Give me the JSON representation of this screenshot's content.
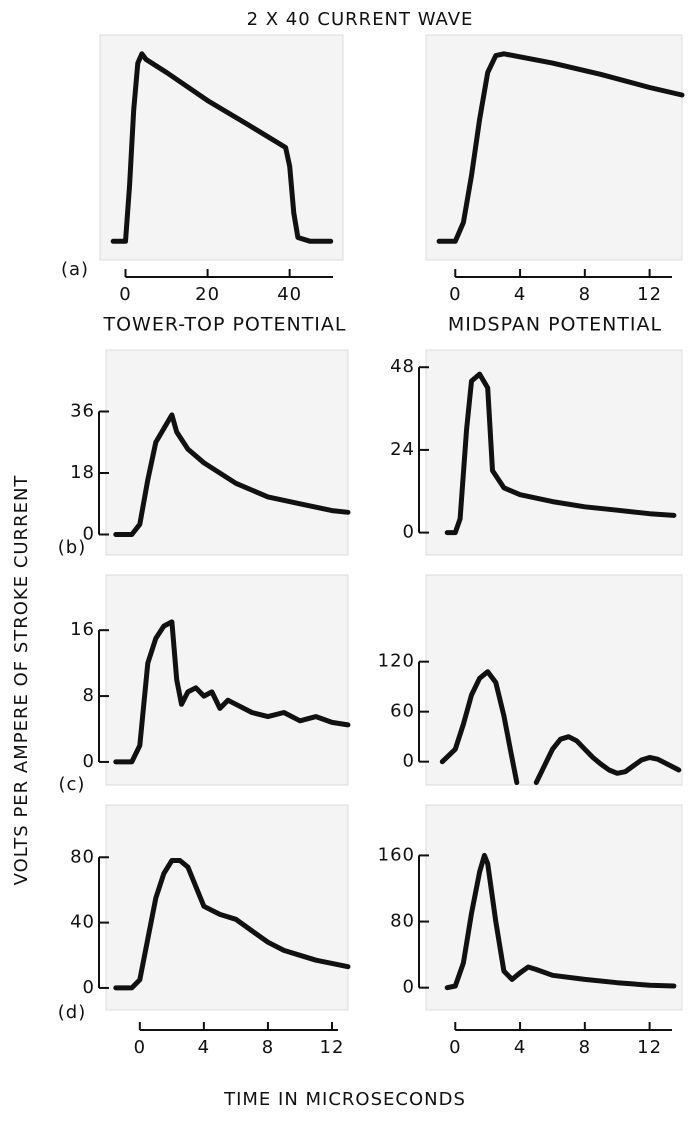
{
  "figure": {
    "title": "2 X 40 CURRENT WAVE",
    "ylabel": "VOLTS PER AMPERE OF STROKE CURRENT",
    "xlabel": "TIME IN MICROSECONDS"
  },
  "chart_data": [
    {
      "type": "line",
      "label": "(a)",
      "xlabel": "TOWER-TOP POTENTIAL",
      "x": [
        -3,
        0,
        1,
        2,
        3,
        4,
        5,
        10,
        20,
        30,
        39,
        40,
        41,
        42,
        45,
        50
      ],
      "values": [
        0,
        0,
        0.3,
        0.7,
        0.95,
        1.0,
        0.97,
        0.9,
        0.75,
        0.62,
        0.5,
        0.4,
        0.15,
        0.02,
        0,
        0
      ],
      "xlim": [
        -5,
        53
      ],
      "xticks": [
        0,
        20,
        40
      ],
      "ylim": [
        -0.1,
        1.1
      ],
      "color": "#111111"
    },
    {
      "type": "line",
      "xlabel": "MIDSPAN POTENTIAL",
      "x": [
        -1,
        0,
        0.5,
        1,
        1.5,
        2,
        2.5,
        3,
        6,
        9,
        12,
        14
      ],
      "values": [
        0,
        0,
        0.1,
        0.35,
        0.65,
        0.9,
        0.99,
        1.0,
        0.95,
        0.89,
        0.82,
        0.78
      ],
      "xlim": [
        -1.5,
        14
      ],
      "xticks": [
        0,
        4,
        8,
        12
      ],
      "ylim": [
        -0.1,
        1.1
      ],
      "color": "#111111"
    },
    {
      "type": "line",
      "label": "(b)",
      "x": [
        -1.5,
        -0.5,
        0,
        0.5,
        1,
        1.5,
        2,
        2.3,
        3,
        4,
        6,
        8,
        10,
        12,
        13
      ],
      "values": [
        0,
        0,
        3,
        16,
        27,
        31,
        35,
        30,
        25,
        21,
        15,
        11,
        9,
        7,
        6.5
      ],
      "xlim": [
        -1.8,
        13
      ],
      "ylim": [
        -6,
        54
      ],
      "yticks": [
        0,
        18,
        36
      ],
      "color": "#111111"
    },
    {
      "type": "line",
      "x": [
        -0.5,
        0,
        0.3,
        0.7,
        1,
        1.5,
        2,
        2.3,
        3,
        4,
        6,
        8,
        10,
        12,
        13.5
      ],
      "values": [
        0,
        0,
        4,
        30,
        44,
        46,
        42,
        18,
        13,
        11,
        9,
        7.5,
        6.5,
        5.5,
        5
      ],
      "xlim": [
        -1.5,
        14
      ],
      "ylim": [
        -6.5,
        53
      ],
      "yticks": [
        0,
        24,
        48
      ],
      "color": "#111111"
    },
    {
      "type": "line",
      "label": "(c)",
      "x": [
        -1.5,
        -0.5,
        0,
        0.5,
        1,
        1.5,
        2,
        2.3,
        2.6,
        3,
        3.5,
        4,
        4.5,
        5,
        5.5,
        6,
        7,
        8,
        9,
        10,
        11,
        12,
        13
      ],
      "values": [
        0,
        0,
        2,
        12,
        15,
        16.5,
        17,
        10,
        7,
        8.5,
        9,
        8,
        8.5,
        6.5,
        7.5,
        7,
        6,
        5.5,
        6,
        5,
        5.5,
        4.8,
        4.5
      ],
      "xlim": [
        -1.8,
        13
      ],
      "ylim": [
        -2.8,
        22.7
      ],
      "yticks": [
        0,
        8,
        16
      ],
      "color": "#111111"
    },
    {
      "type": "line",
      "x": [
        -0.8,
        0,
        0.5,
        1,
        1.5,
        2,
        2.5,
        3,
        3.4,
        3.8,
        4.4,
        5,
        5.5,
        6,
        6.5,
        7,
        7.5,
        8,
        8.5,
        9,
        9.5,
        10,
        10.5,
        11,
        11.5,
        12,
        12.5,
        13,
        13.8
      ],
      "values": [
        0,
        15,
        45,
        80,
        100,
        108,
        95,
        55,
        15,
        -25,
        null,
        -25,
        -5,
        15,
        27,
        30,
        25,
        15,
        5,
        -3,
        -10,
        -14,
        -12,
        -5,
        2,
        5,
        3,
        -2,
        -10
      ],
      "xlim": [
        -1.5,
        14
      ],
      "ylim": [
        -28,
        224
      ],
      "yticks": [
        0,
        60,
        120
      ],
      "color": "#111111"
    },
    {
      "type": "line",
      "label": "(d)",
      "x": [
        -1.5,
        -0.5,
        0,
        0.5,
        1,
        1.5,
        2,
        2.5,
        3,
        3.5,
        4,
        5,
        6,
        7,
        8,
        9,
        10,
        11,
        12,
        13
      ],
      "values": [
        0,
        0,
        5,
        30,
        55,
        70,
        78,
        78,
        74,
        62,
        50,
        45,
        42,
        35,
        28,
        23,
        20,
        17,
        15,
        13
      ],
      "xlim": [
        -1.8,
        13
      ],
      "xticks": [
        0,
        4,
        8,
        12
      ],
      "ylim": [
        -13.5,
        112
      ],
      "yticks": [
        0,
        40,
        80
      ],
      "color": "#111111"
    },
    {
      "type": "line",
      "x": [
        -0.5,
        0,
        0.5,
        1,
        1.5,
        1.8,
        2,
        2.5,
        3,
        3.5,
        4,
        4.5,
        5,
        6,
        8,
        10,
        12,
        13.5
      ],
      "values": [
        0,
        2,
        30,
        90,
        140,
        160,
        150,
        80,
        20,
        10,
        18,
        25,
        22,
        15,
        10,
        6,
        3,
        2
      ],
      "xlim": [
        -1.5,
        14
      ],
      "xticks": [
        0,
        4,
        8,
        12
      ],
      "ylim": [
        -27,
        221
      ],
      "yticks": [
        0,
        80,
        160
      ],
      "color": "#111111"
    }
  ]
}
